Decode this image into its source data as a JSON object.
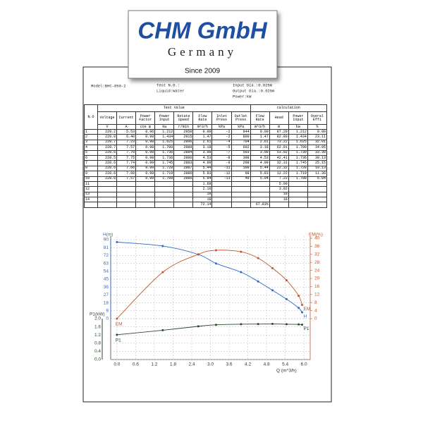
{
  "header": {
    "logo": "CHM GmbH",
    "country": "Germany",
    "since": "Since 2009"
  },
  "meta": {
    "model": "Model:BHC-850-2",
    "test_no": "Test N.O.:",
    "liquid": "Liquid:Water",
    "input_dia": "Input Dia.:0.025m",
    "output_dia": "Output Dia.:0.025m",
    "power": "Power:kW"
  },
  "table": {
    "no_header": "N.O",
    "group_test": "Test Value",
    "group_calc": "calculation",
    "columns": [
      {
        "name": "Voltage",
        "unit": "V"
      },
      {
        "name": "Current",
        "unit": "A"
      },
      {
        "name": "Power Factor",
        "unit": "cos φ"
      },
      {
        "name": "Power Input",
        "unit": "kw"
      },
      {
        "name": "Rotate Speed",
        "unit": "r/min"
      },
      {
        "name": "Flow Rate",
        "unit": "m^3/h"
      },
      {
        "name": "Inlet Press",
        "unit": "kPa"
      },
      {
        "name": "Outlet Press",
        "unit": "kPa"
      },
      {
        "name": "Flow Rate",
        "unit": "m^3/h"
      },
      {
        "name": "Head",
        "unit": "m"
      },
      {
        "name": "Power Input",
        "unit": "kw"
      },
      {
        "name": "Overal Effi",
        "unit": "%"
      }
    ],
    "rows": [
      [
        "1",
        "229.2",
        "5.53",
        "0.96",
        "1.212",
        "2950",
        "0.00",
        "-2",
        "844",
        "0.00",
        "87.29",
        "1.212",
        "0.00"
      ],
      [
        "2",
        "229.0",
        "6.40",
        "0.98",
        "1.434",
        "2915",
        "1.47",
        "-2",
        "800",
        "1.47",
        "82.80",
        "1.434",
        "23.11"
      ],
      [
        "3",
        "228.7",
        "7.23",
        "0.98",
        "1.625",
        "2896",
        "2.61",
        "-4",
        "704",
        "2.61",
        "73.22",
        "1.625",
        "32.01"
      ],
      [
        "4",
        "228.7",
        "7.57",
        "0.98",
        "1.700",
        "2889",
        "3.18",
        "-5",
        "602",
        "3.18",
        "62.91",
        "1.700",
        "34.05"
      ],
      [
        "5",
        "228.6",
        "7.70",
        "0.98",
        "1.730",
        "2884",
        "3.98",
        "-7",
        "503",
        "3.98",
        "53.02",
        "1.730",
        "33.30"
      ],
      [
        "6",
        "228.5",
        "7.75",
        "0.98",
        "1.736",
        "2886",
        "4.53",
        "-8",
        "398",
        "4.53",
        "42.41",
        "1.736",
        "30.13"
      ],
      [
        "7",
        "228.6",
        "7.74",
        "0.99",
        "1.745",
        "2883",
        "4.99",
        "-9",
        "298",
        "4.99",
        "32.31",
        "1.745",
        "25.15"
      ],
      [
        "8",
        "228.6",
        "7.66",
        "0.99",
        "1.728",
        "2887",
        "5.44",
        "-11",
        "198",
        "5.44",
        "22.32",
        "1.728",
        "19.13"
      ],
      [
        "9",
        "228.6",
        "7.60",
        "0.99",
        "1.719",
        "2886",
        "5.83",
        "-12",
        "98",
        "5.83",
        "12.22",
        "1.719",
        "11.38"
      ],
      [
        "10",
        "228.6",
        "7.57",
        "0.99",
        "1.708",
        "2886",
        "5.94",
        "-13",
        "48",
        "5.94",
        "7.22",
        "1.708",
        "6.84"
      ]
    ],
    "extra_rows": [
      {
        "no": "11",
        "flow_rate": "1.68",
        "head": "5.09"
      },
      {
        "no": "12",
        "flow_rate": "2.16",
        "head": "3.92"
      },
      {
        "no": "13",
        "flow_rate": "18",
        "head": "18"
      },
      {
        "no": "14",
        "flow_rate": "18",
        "head": "18"
      }
    ],
    "totals": {
      "flow_rate": "72.14",
      "flow_rate_calc": "67.83%"
    }
  },
  "chart": {
    "type": "line",
    "x_label": "Q (m^3/h)",
    "xlim": [
      -0.2,
      6.2
    ],
    "xticks": [
      {
        "value": 0,
        "label": "0.0"
      },
      0.6,
      1.2,
      1.8,
      2.4,
      {
        "value": 3,
        "label": "3.0"
      },
      3.6,
      4.2,
      4.8,
      5.4,
      {
        "value": 6,
        "label": "6.0"
      }
    ],
    "y_label": "H(m)",
    "ylim": [
      0,
      90
    ],
    "yticks": [
      0,
      9,
      18,
      27,
      36,
      45,
      54,
      63,
      72,
      81,
      90
    ],
    "y2_label": "EM(%)",
    "y2lim": [
      0,
      40
    ],
    "y2ticks": [
      0,
      4,
      8,
      12,
      16,
      20,
      24,
      28,
      32,
      36,
      40
    ],
    "y3_label": "P1(kW)",
    "y3lim": [
      0,
      2
    ],
    "y3ticks": [
      {
        "value": 0,
        "label": "0.0"
      },
      0.4,
      0.8,
      1.2,
      1.6,
      {
        "value": 2,
        "label": "2.0"
      }
    ],
    "grid": true,
    "x": [
      0,
      1.47,
      2.61,
      3.18,
      3.98,
      4.53,
      4.99,
      5.44,
      5.83,
      5.94
    ],
    "series": [
      {
        "name": "H",
        "color": "#2f67c6",
        "axis": "y",
        "values": [
          87.29,
          82.8,
          73.22,
          62.91,
          53.02,
          42.41,
          32.31,
          22.32,
          12.22,
          7.22
        ]
      },
      {
        "name": "EM",
        "color": "#c4552f",
        "axis": "y2",
        "values": [
          0,
          23.11,
          32.01,
          34.05,
          33.3,
          30.13,
          25.15,
          19.13,
          11.38,
          6.84
        ]
      },
      {
        "name": "P1",
        "color": "#2c4a2c",
        "axis": "y3",
        "values": [
          1.212,
          1.434,
          1.625,
          1.7,
          1.73,
          1.736,
          1.745,
          1.728,
          1.719,
          1.708
        ]
      }
    ]
  }
}
